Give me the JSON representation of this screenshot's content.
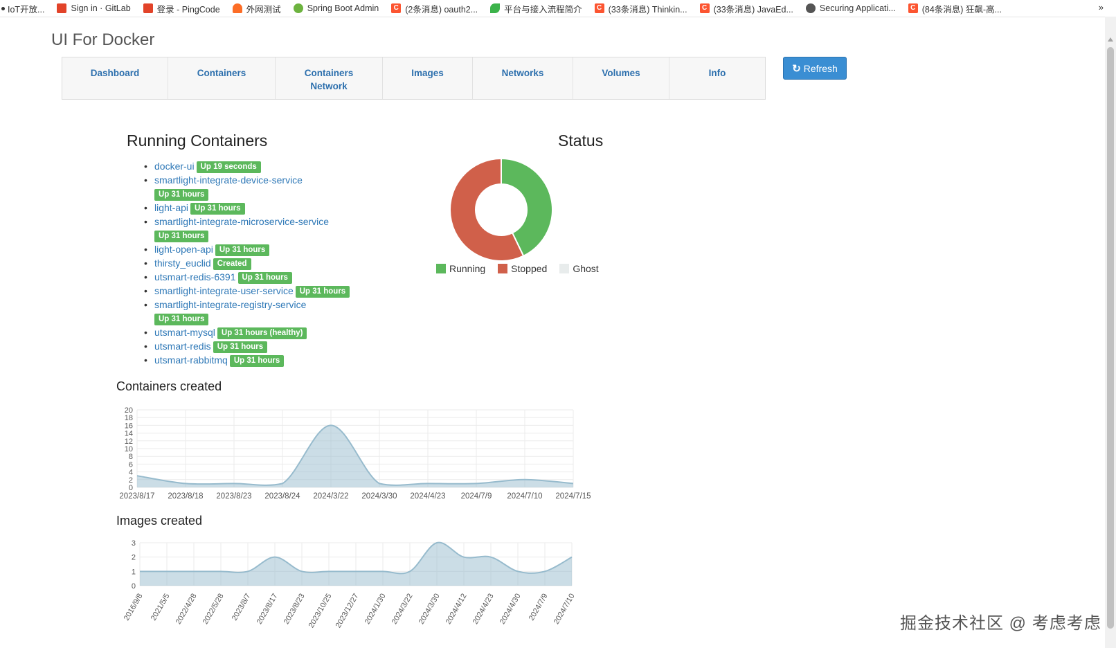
{
  "bookmarks": [
    {
      "label": "IoT开放...",
      "icon": "dot-icon"
    },
    {
      "label": "Sign in · GitLab",
      "icon": "gitlab-icon"
    },
    {
      "label": "登录 - PingCode",
      "icon": "pingcode-icon"
    },
    {
      "label": "外网测试",
      "icon": "fox-icon"
    },
    {
      "label": "Spring Boot Admin",
      "icon": "spring-icon"
    },
    {
      "label": "(2条消息) oauth2...",
      "icon": "csdn-icon"
    },
    {
      "label": "平台与接入流程简介",
      "icon": "leaf-icon"
    },
    {
      "label": "(33条消息) Thinkin...",
      "icon": "csdn-icon"
    },
    {
      "label": "(33条消息) JavaEd...",
      "icon": "csdn-icon"
    },
    {
      "label": "Securing Applicati...",
      "icon": "globe-icon"
    },
    {
      "label": "(84条消息) 狂飙-高...",
      "icon": "csdn-icon"
    }
  ],
  "bookmarks_more": "»",
  "app_title": "UI For Docker",
  "nav": {
    "tabs": [
      {
        "label": "Dashboard",
        "name": "tab-dashboard"
      },
      {
        "label": "Containers",
        "name": "tab-containers"
      },
      {
        "label": "Containers Network",
        "name": "tab-containers-network"
      },
      {
        "label": "Images",
        "name": "tab-images"
      },
      {
        "label": "Networks",
        "name": "tab-networks"
      },
      {
        "label": "Volumes",
        "name": "tab-volumes"
      },
      {
        "label": "Info",
        "name": "tab-info"
      }
    ],
    "refresh_label": "Refresh"
  },
  "running_containers": {
    "title": "Running Containers",
    "items": [
      {
        "name": "docker-ui",
        "status": "Up 19 seconds",
        "wrap": false
      },
      {
        "name": "smartlight-integrate-device-service",
        "status": "Up 31 hours",
        "wrap": true
      },
      {
        "name": "light-api",
        "status": "Up 31 hours",
        "wrap": false
      },
      {
        "name": "smartlight-integrate-microservice-service",
        "status": "Up 31 hours",
        "wrap": true
      },
      {
        "name": "light-open-api",
        "status": "Up 31 hours",
        "wrap": false
      },
      {
        "name": "thirsty_euclid",
        "status": "Created",
        "wrap": false
      },
      {
        "name": "utsmart-redis-6391",
        "status": "Up 31 hours",
        "wrap": false
      },
      {
        "name": "smartlight-integrate-user-service",
        "status": "Up 31 hours",
        "wrap": false
      },
      {
        "name": "smartlight-integrate-registry-service",
        "status": "Up 31 hours",
        "wrap": true
      },
      {
        "name": "utsmart-mysql",
        "status": "Up 31 hours (healthy)",
        "wrap": false
      },
      {
        "name": "utsmart-redis",
        "status": "Up 31 hours",
        "wrap": false
      },
      {
        "name": "utsmart-rabbitmq",
        "status": "Up 31 hours",
        "wrap": false
      }
    ]
  },
  "status": {
    "title": "Status",
    "legend": [
      {
        "label": "Running",
        "color": "#5cb85c"
      },
      {
        "label": "Stopped",
        "color": "#d0604a"
      },
      {
        "label": "Ghost",
        "color": "#e8ecec"
      }
    ]
  },
  "chart_data": [
    {
      "type": "pie",
      "title": "Status",
      "categories": [
        "Running",
        "Stopped",
        "Ghost"
      ],
      "values": [
        12,
        16,
        0
      ],
      "colors": [
        "#5cb85c",
        "#d0604a",
        "#e8ecec"
      ]
    },
    {
      "type": "area",
      "title": "Containers created",
      "x": [
        "2023/8/17",
        "2023/8/18",
        "2023/8/23",
        "2023/8/24",
        "2024/3/22",
        "2024/3/30",
        "2024/4/23",
        "2024/7/9",
        "2024/7/10",
        "2024/7/15"
      ],
      "values": [
        3,
        1,
        1,
        1,
        16,
        1,
        1,
        1,
        2,
        1
      ],
      "yticks": [
        0,
        2,
        4,
        6,
        8,
        10,
        12,
        14,
        16,
        18,
        20
      ],
      "ylim": [
        0,
        20
      ],
      "grid": true,
      "color": "#9fbfcf"
    },
    {
      "type": "area",
      "title": "Images created",
      "x": [
        "2016/9/8",
        "2021/5/5",
        "2022/4/28",
        "2022/5/28",
        "2023/8/7",
        "2023/8/17",
        "2023/8/23",
        "2023/10/25",
        "2023/12/27",
        "2024/1/30",
        "2024/3/22",
        "2024/3/30",
        "2024/4/12",
        "2024/4/23",
        "2024/4/30",
        "2024/7/9",
        "2024/7/10"
      ],
      "values": [
        1,
        1,
        1,
        1,
        1,
        2,
        1,
        1,
        1,
        1,
        1,
        3,
        2,
        2,
        1,
        1,
        2
      ],
      "yticks": [
        0,
        1,
        2,
        3
      ],
      "ylim": [
        0,
        3
      ],
      "grid": true,
      "color": "#9fbfcf"
    }
  ],
  "watermark": "掘金技术社区 @ 考虑考虑"
}
